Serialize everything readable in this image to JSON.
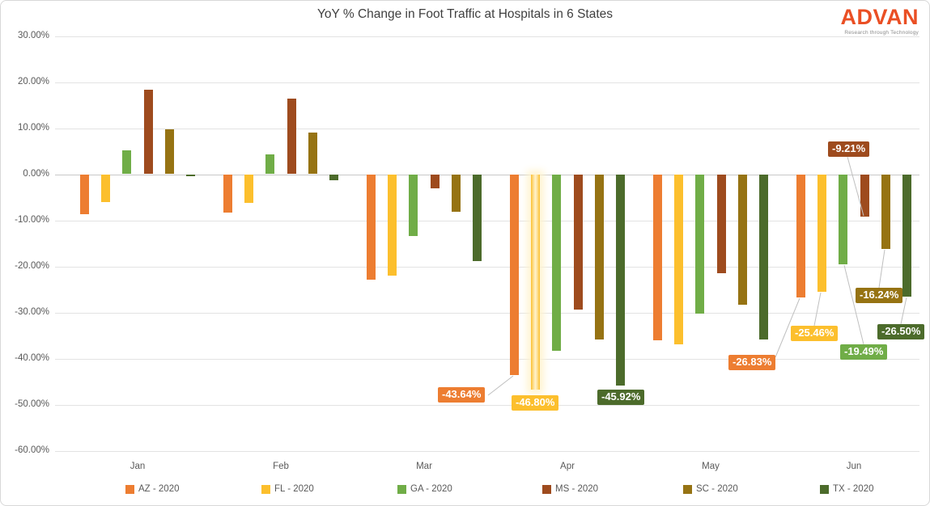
{
  "logo": {
    "name": "ADVAN",
    "tagline": "Research through Technology",
    "color": "#ea4f24"
  },
  "chart_data": {
    "type": "bar",
    "title": "YoY % Change in Foot Traffic at Hospitals in 6 States",
    "categories": [
      "Jan",
      "Feb",
      "Mar",
      "Apr",
      "May",
      "Jun"
    ],
    "series": [
      {
        "name": "AZ - 2020",
        "color": "#ED7D31",
        "values": [
          -8.6,
          -8.3,
          -22.9,
          -43.64,
          -36.0,
          -26.83
        ]
      },
      {
        "name": "FL - 2020",
        "color": "#FCBF2D",
        "values": [
          -6.1,
          -6.2,
          -22.0,
          -46.8,
          -37.0,
          -25.46
        ]
      },
      {
        "name": "GA - 2020",
        "color": "#70AD47",
        "values": [
          5.1,
          4.3,
          -13.5,
          -38.4,
          -30.2,
          -19.49
        ]
      },
      {
        "name": "MS - 2020",
        "color": "#9E4B1E",
        "values": [
          18.4,
          16.4,
          -3.0,
          -29.3,
          -21.5,
          -9.21
        ]
      },
      {
        "name": "SC - 2020",
        "color": "#967313",
        "values": [
          9.7,
          9.0,
          -8.1,
          -35.8,
          -28.4,
          -16.24
        ]
      },
      {
        "name": "TX - 2020",
        "color": "#4C6B2B",
        "values": [
          -0.4,
          -1.3,
          -18.8,
          -45.92,
          -35.9,
          -26.5
        ]
      }
    ],
    "ylabel": "",
    "xlabel": "",
    "ylim": [
      -60,
      30
    ],
    "y_tick_step": 10,
    "y_ticks": [
      "30.00%",
      "20.00%",
      "10.00%",
      "0.00%",
      "-10.00%",
      "-20.00%",
      "-30.00%",
      "-40.00%",
      "-50.00%",
      "-60.00%"
    ],
    "grid": true,
    "legend_position": "bottom",
    "highlighted_bar": {
      "series": "FL - 2020",
      "category": "Apr"
    },
    "data_labels": [
      {
        "series": "AZ - 2020",
        "category": "Apr",
        "text": "-43.64%",
        "box": [
          540,
          478
        ],
        "leader": [
          602,
          488,
          633,
          464
        ]
      },
      {
        "series": "FL - 2020",
        "category": "Apr",
        "text": "-46.80%",
        "box": [
          631,
          488
        ],
        "leader": null
      },
      {
        "series": "TX - 2020",
        "category": "Apr",
        "text": "-45.92%",
        "box": [
          737,
          481
        ],
        "leader": null
      },
      {
        "series": "AZ - 2020",
        "category": "Jun",
        "text": "-26.83%",
        "box": [
          899,
          438
        ],
        "leader": [
          957,
          441,
          987,
          368
        ]
      },
      {
        "series": "FL - 2020",
        "category": "Jun",
        "text": "-25.46%",
        "box": [
          976,
          402
        ],
        "leader": [
          1005,
          402,
          1013,
          361
        ]
      },
      {
        "series": "GA - 2020",
        "category": "Jun",
        "text": "-19.49%",
        "box": [
          1037,
          425
        ],
        "leader": [
          1066,
          425,
          1042,
          327
        ]
      },
      {
        "series": "MS - 2020",
        "category": "Jun",
        "text": "-9.21%",
        "box": [
          1022,
          174
        ],
        "leader": [
          1046,
          193,
          1066,
          266
        ]
      },
      {
        "series": "SC - 2020",
        "category": "Jun",
        "text": "-16.24%",
        "box": [
          1056,
          355
        ],
        "leader": [
          1085,
          355,
          1092,
          308
        ]
      },
      {
        "series": "TX - 2020",
        "category": "Jun",
        "text": "-26.50%",
        "box": [
          1083,
          400
        ],
        "leader": [
          1112,
          400,
          1119,
          367
        ]
      }
    ]
  }
}
